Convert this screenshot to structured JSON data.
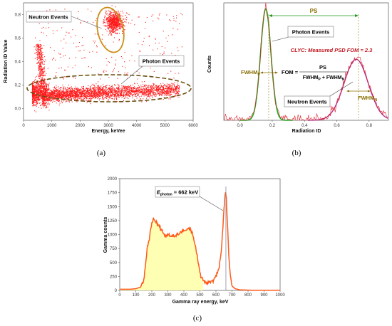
{
  "captions": {
    "a": "(a)",
    "b": "(b)",
    "c": "(c)"
  },
  "chart_data": [
    {
      "type": "scatter",
      "panel": "(a)",
      "xlabel": "Energy, keVee",
      "ylabel": "Radiation ID Value",
      "xlim": [
        0,
        6000
      ],
      "ylim": [
        -0.1,
        0.9
      ],
      "x_ticks": [
        "0",
        "1000",
        "2000",
        "3000",
        "4000",
        "5000",
        "6000"
      ],
      "y_ticks": [
        "0.0",
        "0.2",
        "0.4",
        "0.6",
        "0.8"
      ],
      "grid": false,
      "marker_color": "#ff1a1a",
      "annotations": [
        "Neutron Events",
        "Photon Events"
      ],
      "clusters": [
        {
          "label": "Neutron Events",
          "x_center": 3200,
          "y_center": 0.74,
          "x_spread": 200,
          "y_spread": 0.07
        },
        {
          "label": "Photon Events",
          "x_range": [
            300,
            5500
          ],
          "y_center": 0.16,
          "y_spread": 0.04
        },
        {
          "label": "",
          "x_range": [
            300,
            900
          ],
          "y_range": [
            0.0,
            0.55
          ]
        }
      ]
    },
    {
      "type": "line",
      "panel": "(b)",
      "xlabel": "Radiation ID",
      "ylabel": "Counts",
      "xlim": [
        -0.1,
        0.92
      ],
      "ylim": [
        0,
        1
      ],
      "x_ticks": [
        "0.0",
        "0.2",
        "0.4",
        "0.6",
        "0.8"
      ],
      "grid": false,
      "series": [
        {
          "name": "",
          "color": "#22aa22",
          "peaks": [
            {
              "x": 0.16,
              "height": 0.95,
              "sigma": 0.032
            }
          ]
        },
        {
          "name": "",
          "color": "#b0308f",
          "peaks": [
            {
              "x": 0.72,
              "height": 0.52,
              "sigma": 0.075
            }
          ]
        }
      ],
      "annotations": {
        "ps": "PS",
        "photon": "Photon Events",
        "neutron": "Neutron Events",
        "measured": "CLYC: Measured PSD FOM = 2.3",
        "fwhm_p": "FWHM",
        "fwhm_p_sub": "P",
        "fwhm_n": "FWHM",
        "fwhm_n_sub": "N",
        "fom_lhs": "FOM =",
        "fom_num": "PS",
        "fom_den_a": "FWHM",
        "fom_den_a_sub": "P",
        "fom_den_mid": " + FWHM",
        "fom_den_b_sub": "N"
      }
    },
    {
      "type": "area",
      "panel": "(c)",
      "xlabel": "Gamma ray energy, keV",
      "ylabel": "Gamma counts",
      "xlim": [
        0,
        1000
      ],
      "ylim": [
        0,
        2000
      ],
      "x_ticks": [
        "0",
        "100",
        "200",
        "300",
        "400",
        "500",
        "600",
        "700",
        "800",
        "900",
        "1000"
      ],
      "y_ticks": [
        "0",
        "250",
        "500",
        "750",
        "1000",
        "1250",
        "1500",
        "1750",
        "2000"
      ],
      "line_color": "#ff5a1a",
      "fill_color": "#ffffb3",
      "marker_line_x": 662,
      "annotation": {
        "prefix": "E",
        "sub": "photon",
        "suffix": " = 662 keV"
      },
      "x": [
        0,
        60,
        100,
        130,
        150,
        170,
        190,
        200,
        210,
        220,
        240,
        260,
        280,
        300,
        320,
        340,
        360,
        380,
        400,
        420,
        440,
        450,
        460,
        480,
        500,
        520,
        540,
        560,
        580,
        600,
        620,
        630,
        640,
        650,
        655,
        660,
        665,
        670,
        680,
        690,
        700,
        720,
        750,
        800,
        900,
        1000
      ],
      "y": [
        20,
        20,
        30,
        60,
        200,
        700,
        1050,
        1200,
        1270,
        1240,
        1180,
        1080,
        1000,
        980,
        970,
        980,
        1000,
        1040,
        1080,
        1100,
        1090,
        1050,
        950,
        650,
        320,
        180,
        140,
        140,
        180,
        260,
        420,
        620,
        980,
        1450,
        1680,
        1780,
        1650,
        1300,
        650,
        250,
        80,
        30,
        10,
        5,
        2,
        2
      ]
    }
  ]
}
